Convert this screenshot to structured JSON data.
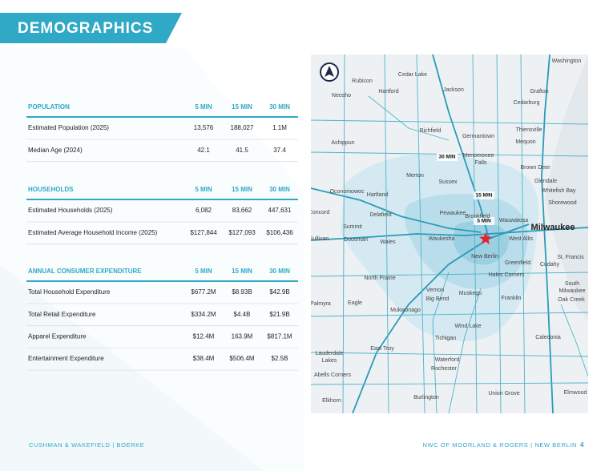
{
  "header": {
    "title": "DEMOGRAPHICS"
  },
  "sections": [
    {
      "title": "POPULATION",
      "columns": [
        "5 MIN",
        "15 MIN",
        "30 MIN"
      ],
      "rows": [
        [
          "Estimated Population (2025)",
          "13,576",
          "188,027",
          "1.1M"
        ],
        [
          "Median Age (2024)",
          "42.1",
          "41.5",
          "37.4"
        ]
      ]
    },
    {
      "title": "HOUSEHOLDS",
      "columns": [
        "5 MIN",
        "15 MIN",
        "30 MIN"
      ],
      "rows": [
        [
          "Estimated Households (2025)",
          "6,082",
          "83,662",
          "447,631"
        ],
        [
          "Estimated Average Household Income (2025)",
          "$127,844",
          "$127,093",
          "$106,436"
        ]
      ]
    },
    {
      "title": "ANNUAL CONSUMER EXPENDITURE",
      "columns": [
        "5 MIN",
        "15 MIN",
        "30 MIN"
      ],
      "rows": [
        [
          "Total Household Expenditure",
          "$677.2M",
          "$8.93B",
          "$42.9B"
        ],
        [
          "Total Retail Expenditure",
          "$334.2M",
          "$4.4B",
          "$21.9B"
        ],
        [
          "Apparel Expenditure",
          "$12.4M",
          "163.9M",
          "$817.1M"
        ],
        [
          "Entertainment Expenditure",
          "$38.4M",
          "$506.4M",
          "$2.5B"
        ]
      ]
    }
  ],
  "map": {
    "isochrone_labels": [
      "30 MIN",
      "15 MIN",
      "5 MIN"
    ],
    "labels": [
      "Washington",
      "Cedar Lake",
      "Rubicon",
      "Hartford",
      "Jackson",
      "Grafton",
      "Neosho",
      "Cedarburg",
      "Richfield",
      "Thiensville",
      "Ashippun",
      "Germantown",
      "Mequon",
      "Menomonee",
      "Falls",
      "Brown Deer",
      "Merton",
      "Sussex",
      "Glendale",
      "Oconomowoc",
      "Hartland",
      "Whitefish Bay",
      "Shorewood",
      "Concord",
      "Delafield",
      "Pewaukee",
      "Brookfield",
      "Wauwatosa",
      "Milwaukee",
      "Summit",
      "Sullivan",
      "Dousman",
      "Wales",
      "Waukesha",
      "West Allis",
      "New Berlin",
      "Greenfield",
      "St. Francis",
      "Cudahy",
      "Hales Corners",
      "North Prairie",
      "South",
      "Milwaukee",
      "Vernon",
      "Muskego",
      "Oak Creek",
      "Big Bend",
      "Eagle",
      "Franklin",
      "Palmyra",
      "Mukwonago",
      "Wind Lake",
      "Caledonia",
      "Tichigan",
      "East Troy",
      "Lauderdale",
      "Lakes",
      "Waterford",
      "Rochester",
      "Abells Corners",
      "Union Grove",
      "Burlington",
      "Elkhorn",
      "Elmwood"
    ]
  },
  "footer": {
    "left": "CUSHMAN & WAKEFIELD | BOERKE",
    "right": "NWC OF MOORLAND & ROGERS | NEW BERLIN",
    "page": "4"
  }
}
